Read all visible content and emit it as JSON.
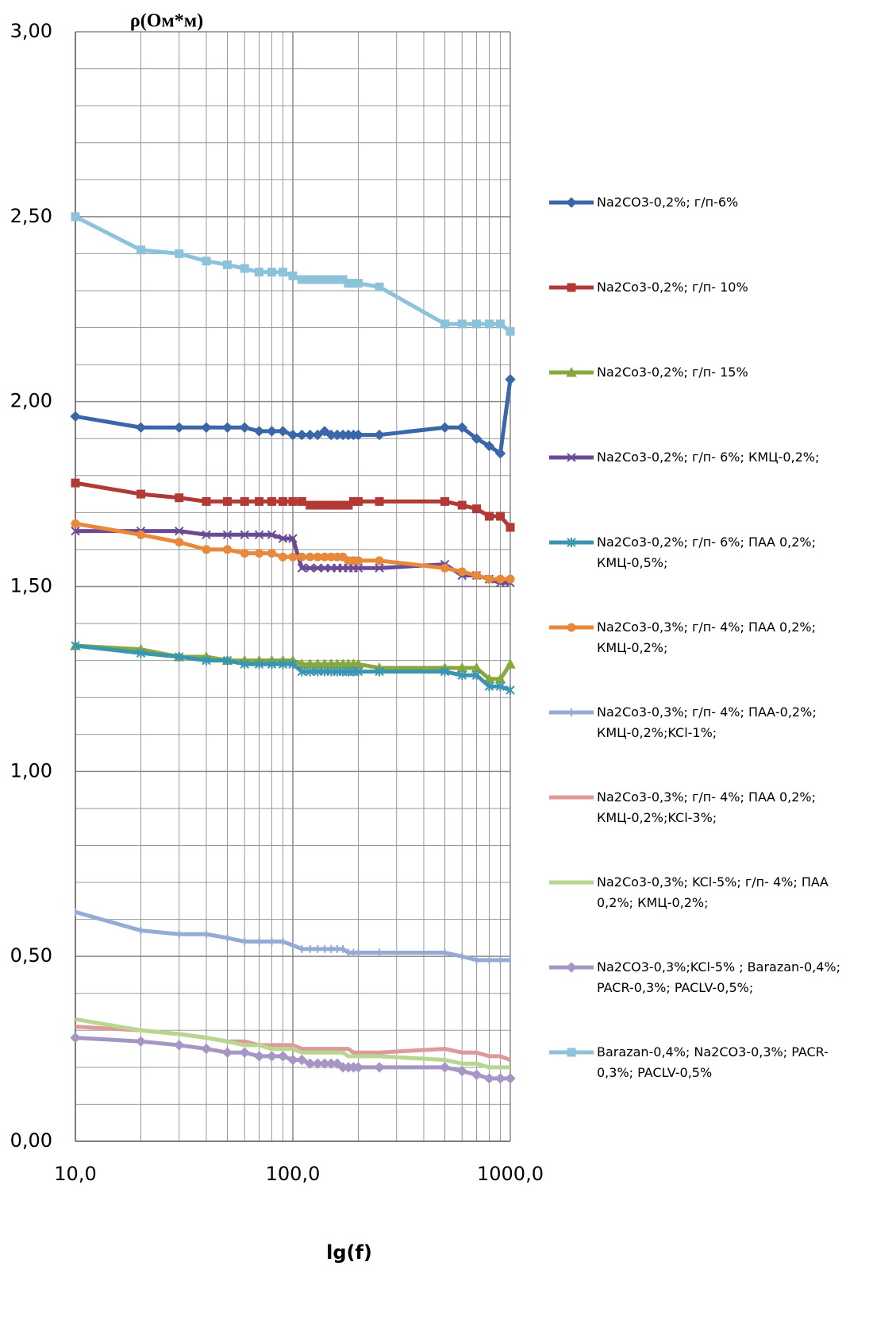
{
  "chart_data": {
    "type": "line",
    "title": "ρ(Ом*м)",
    "x_label": "lg(f)",
    "x_scale": "log",
    "grid": true,
    "xlim": [
      10,
      1000
    ],
    "xticks": [
      {
        "value": 10,
        "label": "10,0"
      },
      {
        "value": 100,
        "label": "100,0"
      },
      {
        "value": 1000,
        "label": "1000,0"
      }
    ],
    "ylim": [
      0,
      3
    ],
    "yticks": [
      {
        "value": 0,
        "label": "0,00"
      },
      {
        "value": 0.5,
        "label": "0,50"
      },
      {
        "value": 1,
        "label": "1,00"
      },
      {
        "value": 1.5,
        "label": "1,50"
      },
      {
        "value": 2,
        "label": "2,00"
      },
      {
        "value": 2.5,
        "label": "2,50"
      },
      {
        "value": 3,
        "label": "3,00"
      }
    ],
    "x": [
      10,
      20,
      30,
      40,
      50,
      60,
      70,
      80,
      90,
      100,
      110,
      120,
      130,
      140,
      150,
      160,
      170,
      180,
      190,
      200,
      250,
      500,
      600,
      700,
      800,
      900,
      1000
    ],
    "series": [
      {
        "name": "Na2CO3-0,2%; г/п-6%",
        "color": "#3a67a8",
        "marker": "diamond",
        "values": [
          1.96,
          1.93,
          1.93,
          1.93,
          1.93,
          1.93,
          1.92,
          1.92,
          1.92,
          1.91,
          1.91,
          1.91,
          1.91,
          1.92,
          1.91,
          1.91,
          1.91,
          1.91,
          1.91,
          1.91,
          1.91,
          1.93,
          1.93,
          1.9,
          1.88,
          1.86,
          2.06
        ]
      },
      {
        "name": "Na2Co3-0,2%; г/п- 10%",
        "color": "#b23a36",
        "marker": "square",
        "values": [
          1.78,
          1.75,
          1.74,
          1.73,
          1.73,
          1.73,
          1.73,
          1.73,
          1.73,
          1.73,
          1.73,
          1.72,
          1.72,
          1.72,
          1.72,
          1.72,
          1.72,
          1.72,
          1.73,
          1.73,
          1.73,
          1.73,
          1.72,
          1.71,
          1.69,
          1.69,
          1.66
        ]
      },
      {
        "name": "Na2Co3-0,2%; г/п- 15%",
        "color": "#86a83c",
        "marker": "triangle",
        "values": [
          1.34,
          1.33,
          1.31,
          1.31,
          1.3,
          1.3,
          1.3,
          1.3,
          1.3,
          1.3,
          1.29,
          1.29,
          1.29,
          1.29,
          1.29,
          1.29,
          1.29,
          1.29,
          1.29,
          1.29,
          1.28,
          1.28,
          1.28,
          1.28,
          1.25,
          1.25,
          1.29
        ]
      },
      {
        "name": "Na2Co3-0,2%; г/п- 6%; КМЦ-0,2%;",
        "color": "#6a4a96",
        "marker": "x",
        "values": [
          1.65,
          1.65,
          1.65,
          1.64,
          1.64,
          1.64,
          1.64,
          1.64,
          1.63,
          1.63,
          1.55,
          1.55,
          1.55,
          1.55,
          1.55,
          1.55,
          1.55,
          1.55,
          1.55,
          1.55,
          1.55,
          1.56,
          1.53,
          1.53,
          1.52,
          1.51,
          1.51
        ]
      },
      {
        "name": "Na2Co3-0,2%; г/п- 6%; ПАА 0,2%; КМЦ-0,5%;",
        "color": "#3a95b0",
        "marker": "star",
        "values": [
          1.34,
          1.32,
          1.31,
          1.3,
          1.3,
          1.29,
          1.29,
          1.29,
          1.29,
          1.29,
          1.27,
          1.27,
          1.27,
          1.27,
          1.27,
          1.27,
          1.27,
          1.27,
          1.27,
          1.27,
          1.27,
          1.27,
          1.26,
          1.26,
          1.23,
          1.23,
          1.22
        ]
      },
      {
        "name": "Na2Co3-0,3%; г/п- 4%; ПАА 0,2%; КМЦ-0,2%;",
        "color": "#e8883a",
        "marker": "circle",
        "values": [
          1.67,
          1.64,
          1.62,
          1.6,
          1.6,
          1.59,
          1.59,
          1.59,
          1.58,
          1.58,
          1.58,
          1.58,
          1.58,
          1.58,
          1.58,
          1.58,
          1.58,
          1.57,
          1.57,
          1.57,
          1.57,
          1.55,
          1.54,
          1.53,
          1.52,
          1.52,
          1.52
        ]
      },
      {
        "name": "Na2Co3-0,3%; г/п- 4%; ПАА-0,2%; КМЦ-0,2%;KCl-1%;",
        "color": "#95abd6",
        "marker": "dash",
        "values": [
          0.62,
          0.57,
          0.56,
          0.56,
          0.55,
          0.54,
          0.54,
          0.54,
          0.54,
          0.53,
          0.52,
          0.52,
          0.52,
          0.52,
          0.52,
          0.52,
          0.52,
          0.51,
          0.51,
          0.51,
          0.51,
          0.51,
          0.5,
          0.49,
          0.49,
          0.49,
          0.49
        ]
      },
      {
        "name": "Na2Co3-0,3%; г/п- 4%; ПАА 0,2%; КМЦ-0,2%;KCl-3%;",
        "color": "#dc9a98",
        "marker": "none",
        "values": [
          0.31,
          0.3,
          0.29,
          0.28,
          0.27,
          0.27,
          0.26,
          0.26,
          0.26,
          0.26,
          0.25,
          0.25,
          0.25,
          0.25,
          0.25,
          0.25,
          0.25,
          0.25,
          0.24,
          0.24,
          0.24,
          0.25,
          0.24,
          0.24,
          0.23,
          0.23,
          0.22
        ]
      },
      {
        "name": "Na2Co3-0,3%; KCl-5%; г/п- 4%; ПАА 0,2%; КМЦ-0,2%;",
        "color": "#b8d690",
        "marker": "none",
        "values": [
          0.33,
          0.3,
          0.29,
          0.28,
          0.27,
          0.26,
          0.26,
          0.25,
          0.25,
          0.25,
          0.24,
          0.24,
          0.24,
          0.24,
          0.24,
          0.24,
          0.24,
          0.23,
          0.23,
          0.23,
          0.23,
          0.22,
          0.21,
          0.21,
          0.2,
          0.2,
          0.2
        ]
      },
      {
        "name": "Na2CO3-0,3%;KCl-5% ; Barazan-0,4%; PACR-0,3%; PACLV-0,5%;",
        "color": "#a696c6",
        "marker": "diamond",
        "values": [
          0.28,
          0.27,
          0.26,
          0.25,
          0.24,
          0.24,
          0.23,
          0.23,
          0.23,
          0.22,
          0.22,
          0.21,
          0.21,
          0.21,
          0.21,
          0.21,
          0.2,
          0.2,
          0.2,
          0.2,
          0.2,
          0.2,
          0.19,
          0.18,
          0.17,
          0.17,
          0.17
        ]
      },
      {
        "name": "Barazan-0,4%; Na2CO3-0,3%; PACR-0,3%; PACLV-0,5%",
        "color": "#8cc3da",
        "marker": "square",
        "values": [
          2.5,
          2.41,
          2.4,
          2.38,
          2.37,
          2.36,
          2.35,
          2.35,
          2.35,
          2.34,
          2.33,
          2.33,
          2.33,
          2.33,
          2.33,
          2.33,
          2.33,
          2.32,
          2.32,
          2.32,
          2.31,
          2.21,
          2.21,
          2.21,
          2.21,
          2.21,
          2.19
        ]
      }
    ]
  }
}
